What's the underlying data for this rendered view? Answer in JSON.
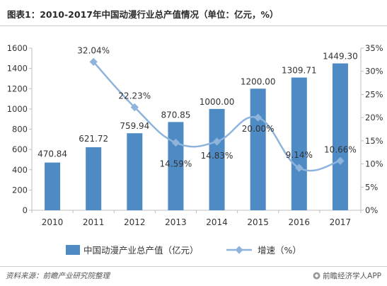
{
  "title": "图表1：2010-2017年中国动漫行业总产值情况（单位：亿元，%）",
  "source": "资料来源：前瞻产业研究院整理",
  "brand": "前瞻经济学人APP",
  "colors": {
    "bar": "#4e8ac4",
    "line": "#8fb4dc",
    "marker": "#8fb4dc"
  },
  "chart_data": {
    "type": "bar+line",
    "categories": [
      "2010",
      "2011",
      "2012",
      "2013",
      "2014",
      "2015",
      "2016",
      "2017"
    ],
    "series": [
      {
        "name": "中国动漫产业总产值（亿元）",
        "type": "bar",
        "axis": "left",
        "values": [
          470.84,
          621.72,
          759.94,
          870.85,
          1000.0,
          1200.0,
          1309.71,
          1449.3
        ],
        "labels": [
          "470.84",
          "621.72",
          "759.94",
          "870.85",
          "1000.00",
          "1200.00",
          "1309.71",
          "1449.30"
        ]
      },
      {
        "name": "增速（%）",
        "type": "line",
        "axis": "right",
        "x": [
          "2011",
          "2012",
          "2013",
          "2014",
          "2015",
          "2016",
          "2017"
        ],
        "values": [
          32.04,
          22.23,
          14.59,
          14.83,
          20.0,
          9.14,
          10.66
        ],
        "labels": [
          "32.04%",
          "22.23%",
          "14.59%",
          "14.83%",
          "20.00%",
          "9.14%",
          "10.66%"
        ]
      }
    ],
    "y_left": {
      "min": 0,
      "max": 1600,
      "ticks": [
        "0",
        "200",
        "400",
        "600",
        "800",
        "1000",
        "1200",
        "1400",
        "1600"
      ]
    },
    "y_right": {
      "min": 0,
      "max": 35,
      "ticks": [
        "0%",
        "5%",
        "10%",
        "15%",
        "20%",
        "25%",
        "30%",
        "35%"
      ]
    },
    "legend_position": "bottom",
    "grid": false
  }
}
